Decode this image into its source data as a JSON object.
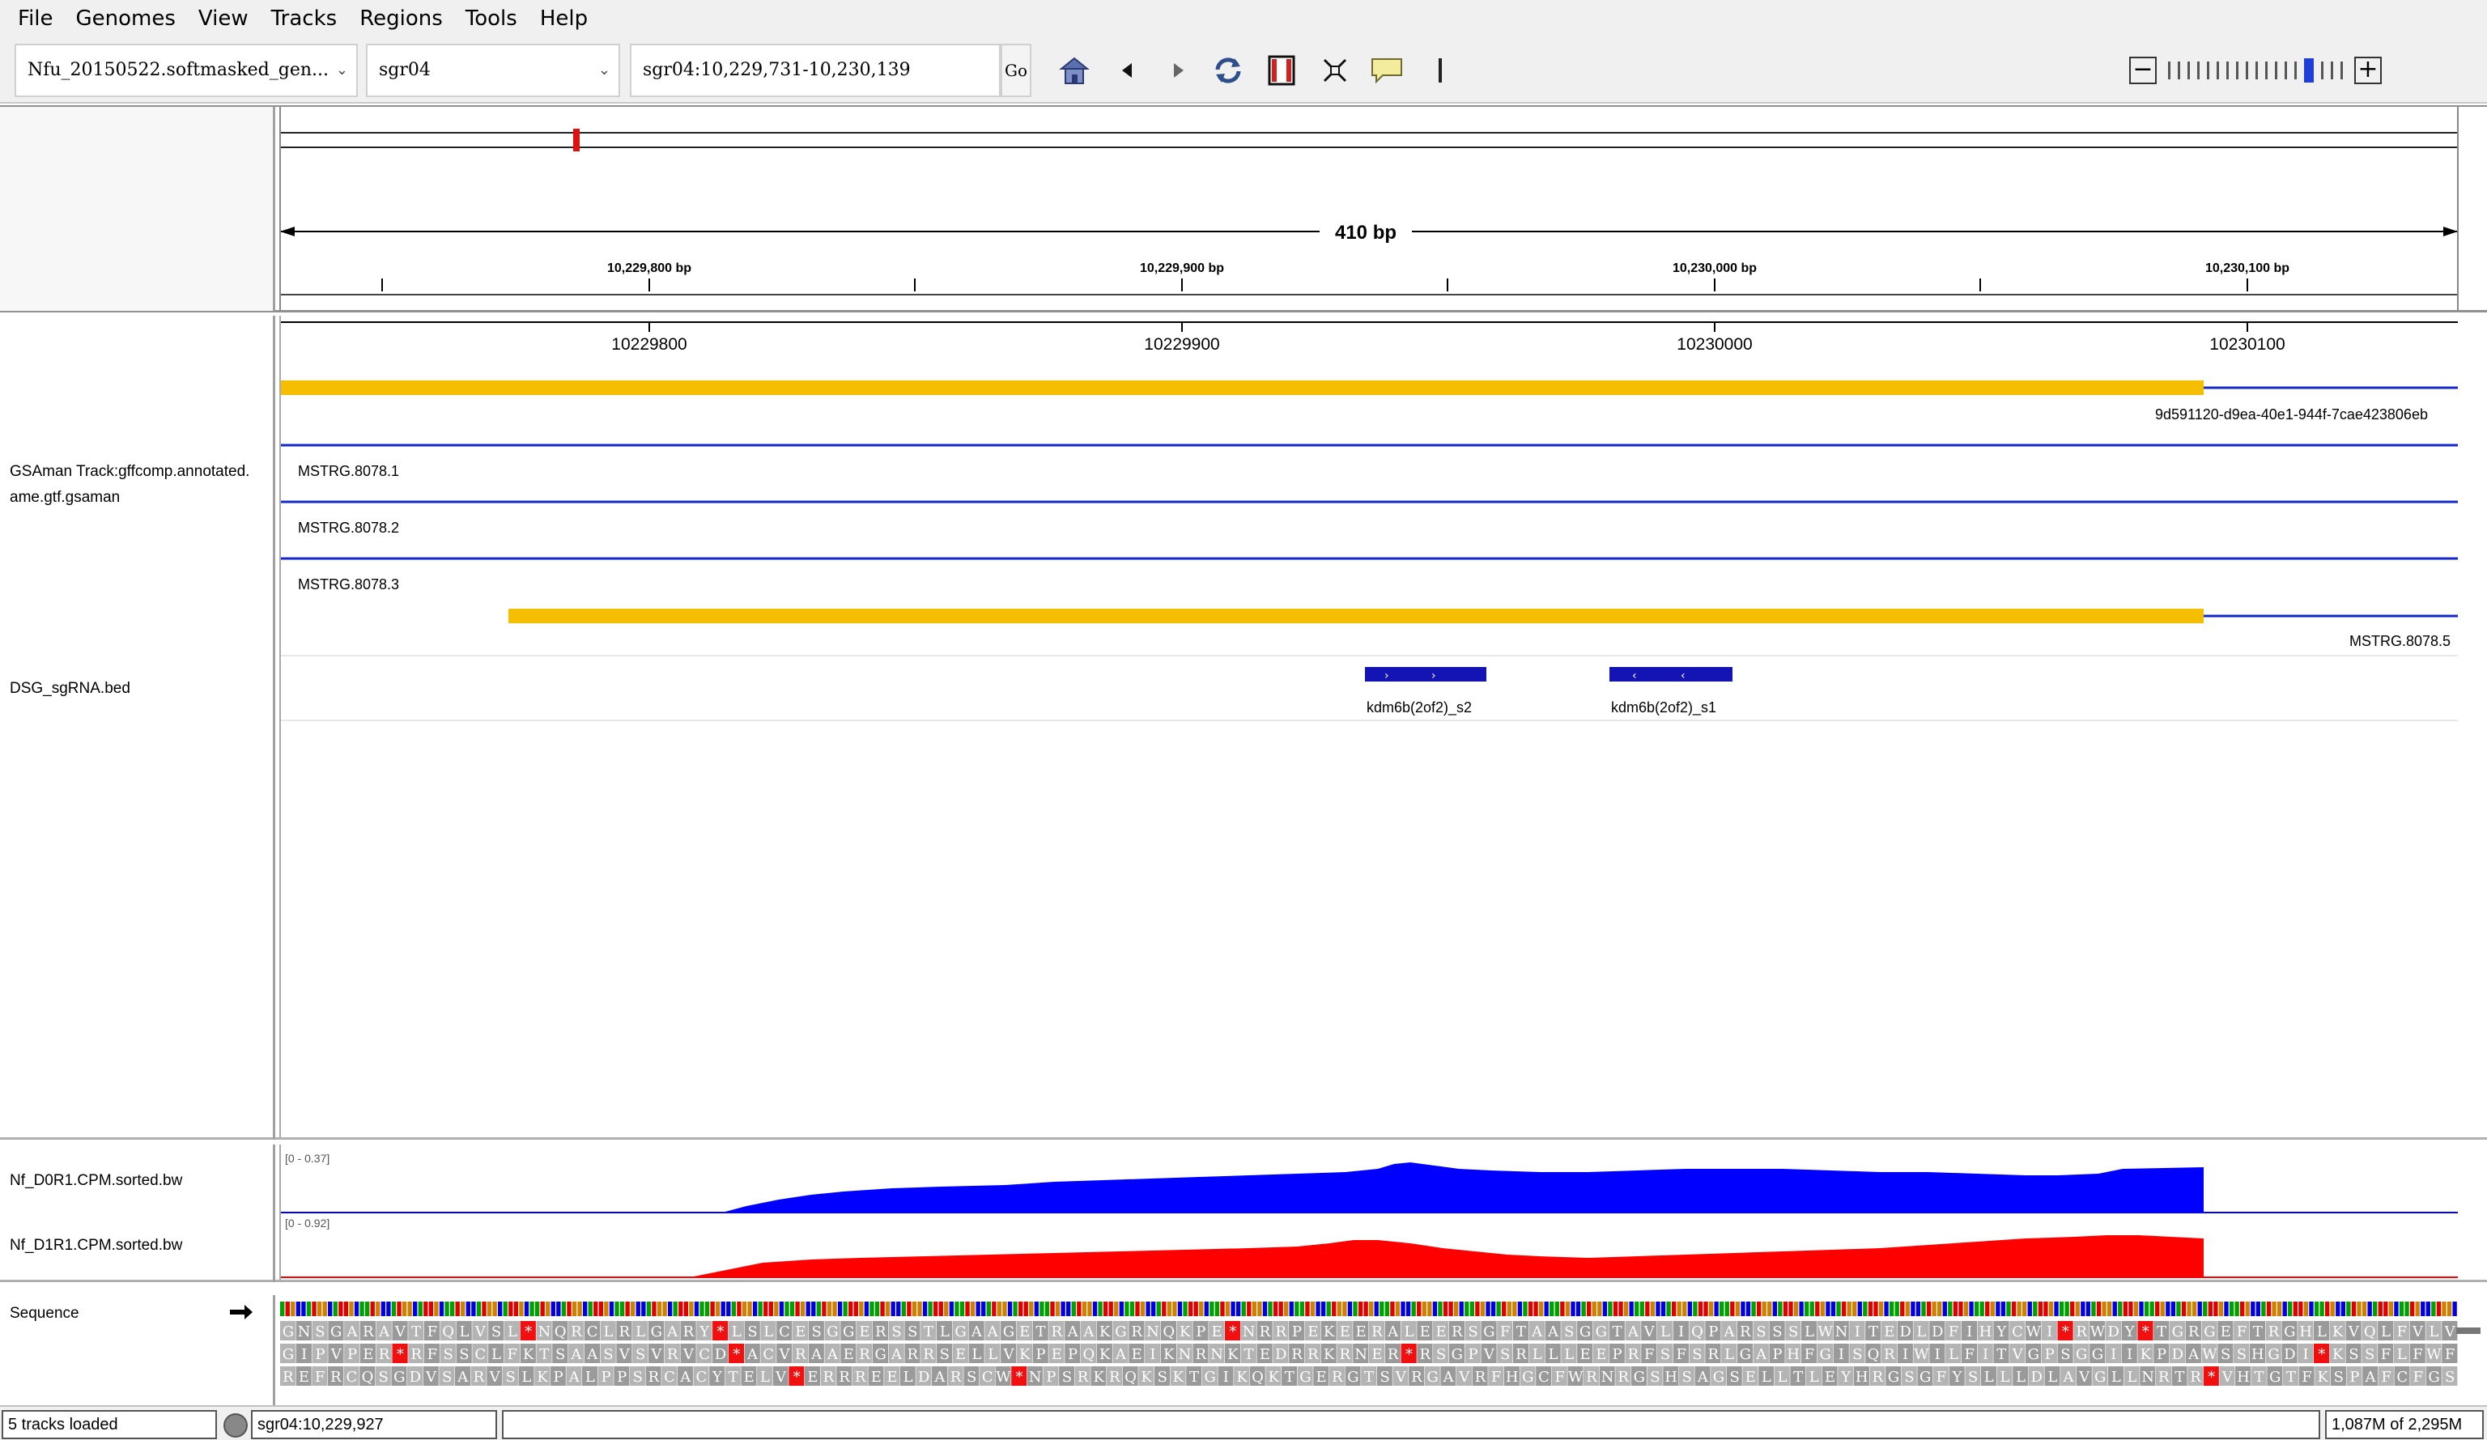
{
  "menu": [
    "File",
    "Genomes",
    "View",
    "Tracks",
    "Regions",
    "Tools",
    "Help"
  ],
  "toolbar": {
    "genome": "Nfu_20150522.softmasked_gen...",
    "chromosome": "sgr04",
    "locus": "sgr04:10,229,731-10,230,139",
    "go_label": "Go"
  },
  "ruler": {
    "span_label": "410 bp",
    "ticks": [
      "10,229,800 bp",
      "10,229,900 bp",
      "10,230,000 bp",
      "10,230,100 bp"
    ]
  },
  "coords": [
    "10229800",
    "10229900",
    "10230000",
    "10230100"
  ],
  "tracks": {
    "gsaman_name_line1": "GSAman Track:gffcomp.annotated.",
    "gsaman_name_line2": "ame.gtf.gsaman",
    "sgrna_name": "DSG_sgRNA.bed",
    "d0_name": "Nf_D0R1.CPM.sorted.bw",
    "d1_name": "Nf_D1R1.CPM.sorted.bw",
    "sequence_name": "Sequence"
  },
  "features": {
    "gene_id": "9d591120-d9ea-40e1-944f-7cae423806eb",
    "transcripts": [
      "MSTRG.8078.1",
      "MSTRG.8078.2",
      "MSTRG.8078.3"
    ],
    "transcript_right_label": "MSTRG.8078.5",
    "sgrnas": [
      "kdm6b(2of2)_s2",
      "kdm6b(2of2)_s1"
    ]
  },
  "wig": {
    "d0_range": "[0 - 0.37]",
    "d1_range": "[0 - 0.92]",
    "d0_color": "#0000ff",
    "d1_color": "#ff0000"
  },
  "feature_color": "#f5be00",
  "line_color": "#1428c8",
  "sequence": {
    "frame1": "GNSGARAVTFQLVSL*NQRCLRLGARY*LSLCESGGERSSTLGAAGETRAAKGRNQKPE*NRRPEKEERALEERSGFTAASGGTAVLIQPARSSSLWNITEDLDFIHYCWI*RWDY*TGRGEFTRGHLKVQLFVLV",
    "frame2": "GIPVPER*RFSSCLFKTSAASVSVRVCD*ACVRAAERGARRSELLVKPEPQKAEIKNRNKTEDRRKRNER*RSGPVSRLLLEEPRFSFSRLGAPHFGISQRIWILFITVGPSGGIIKPDAWSSHGDI*KSSFLFWF",
    "frame3": "REFRCQSGDVSARVSLKPALPPSRCACYTELV*ERRREELDARSCW*NPSRKRQKSKTGIKQKTGERGTSVRGAVRFHGCFWRNRGSHSAGSELLTLEYHRGSGFYSLLLDLAVGLLNRTR*VHTGTFKSPAFCFGS"
  },
  "status": {
    "tracks_loaded": "5 tracks loaded",
    "position": "sgr04:10,229,927",
    "memory": "1,087M of 2,295M"
  }
}
